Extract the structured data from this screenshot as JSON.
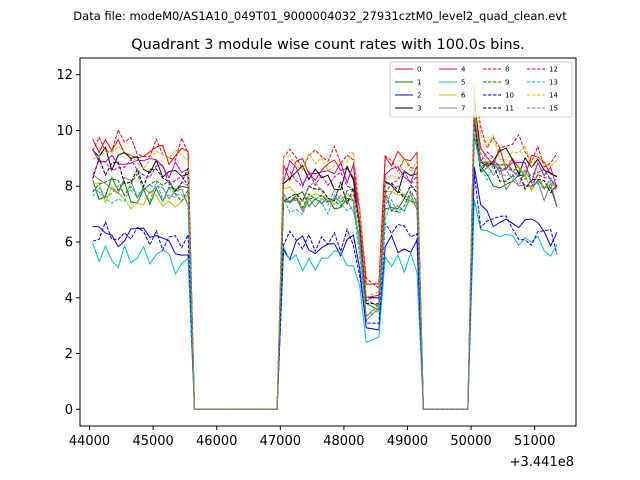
{
  "header": {
    "file_label": "Data file: modeM0/AS1A10_049T01_9000004032_27931cztM0_level2_quad_clean.evt"
  },
  "chart_data": {
    "type": "line",
    "title": "Quadrant 3 module wise count rates with 100.0s bins.",
    "xlabel": "",
    "ylabel": "",
    "x_offset_label": "+3.441e8",
    "xlim": [
      43850,
      51650
    ],
    "ylim": [
      -0.6,
      12.6
    ],
    "xticks": [
      44000,
      45000,
      46000,
      47000,
      48000,
      49000,
      50000,
      51000
    ],
    "xtick_labels": [
      "44000",
      "45000",
      "46000",
      "47000",
      "48000",
      "49000",
      "50000",
      "51000"
    ],
    "yticks": [
      0,
      2,
      4,
      6,
      8,
      10,
      12
    ],
    "ytick_labels": [
      "0",
      "2",
      "4",
      "6",
      "8",
      "10",
      "12"
    ],
    "legend_location": "top-right",
    "segments": [
      {
        "start": 44050,
        "end": 45550
      },
      {
        "start": 47050,
        "end": 48350
      },
      {
        "start": 48550,
        "end": 49150
      },
      {
        "start": 50050,
        "end": 51350
      }
    ],
    "gap_level": 0,
    "series": [
      {
        "name": "0",
        "color": "#ff0000",
        "dash": "solid",
        "levels": [
          9.5,
          8.6,
          9.1,
          9.3
        ]
      },
      {
        "name": "1",
        "color": "#008000",
        "dash": "solid",
        "levels": [
          8.0,
          7.4,
          7.2,
          8.5
        ]
      },
      {
        "name": "2",
        "color": "#0000ff",
        "dash": "solid",
        "levels": [
          6.3,
          5.8,
          5.8,
          7.0
        ]
      },
      {
        "name": "3",
        "color": "#000000",
        "dash": "solid",
        "levels": [
          9.0,
          8.3,
          8.1,
          9.3
        ]
      },
      {
        "name": "4",
        "color": "#bf00bf",
        "dash": "solid",
        "levels": [
          9.0,
          8.5,
          8.3,
          9.2
        ]
      },
      {
        "name": "5",
        "color": "#00bfbf",
        "dash": "solid",
        "levels": [
          5.6,
          5.4,
          5.3,
          6.6
        ]
      },
      {
        "name": "6",
        "color": "#bfbf00",
        "dash": "solid",
        "levels": [
          7.7,
          7.6,
          7.6,
          8.9
        ]
      },
      {
        "name": "7",
        "color": "#808080",
        "dash": "solid",
        "levels": [
          8.0,
          7.5,
          7.4,
          8.6
        ]
      },
      {
        "name": "8",
        "color": "#ff0000",
        "dash": "dashed",
        "levels": [
          9.7,
          9.0,
          8.8,
          9.9
        ]
      },
      {
        "name": "9",
        "color": "#008000",
        "dash": "dashed",
        "levels": [
          8.2,
          7.6,
          7.5,
          9.0
        ]
      },
      {
        "name": "10",
        "color": "#0000ff",
        "dash": "dashed",
        "levels": [
          6.4,
          6.1,
          6.3,
          6.9
        ]
      },
      {
        "name": "11",
        "color": "#000000",
        "dash": "dashed",
        "levels": [
          8.6,
          7.8,
          7.7,
          8.8
        ]
      },
      {
        "name": "12",
        "color": "#bf00bf",
        "dash": "dashed",
        "levels": [
          8.7,
          8.3,
          8.2,
          9.0
        ]
      },
      {
        "name": "13",
        "color": "#00bfbf",
        "dash": "dashed",
        "levels": [
          7.9,
          7.3,
          7.2,
          8.7
        ]
      },
      {
        "name": "14",
        "color": "#bfbf00",
        "dash": "dashed",
        "levels": [
          9.2,
          8.9,
          8.6,
          9.7
        ]
      },
      {
        "name": "15",
        "color": "#808080",
        "dash": "dashed",
        "levels": [
          8.1,
          7.7,
          7.6,
          8.9
        ]
      }
    ]
  }
}
